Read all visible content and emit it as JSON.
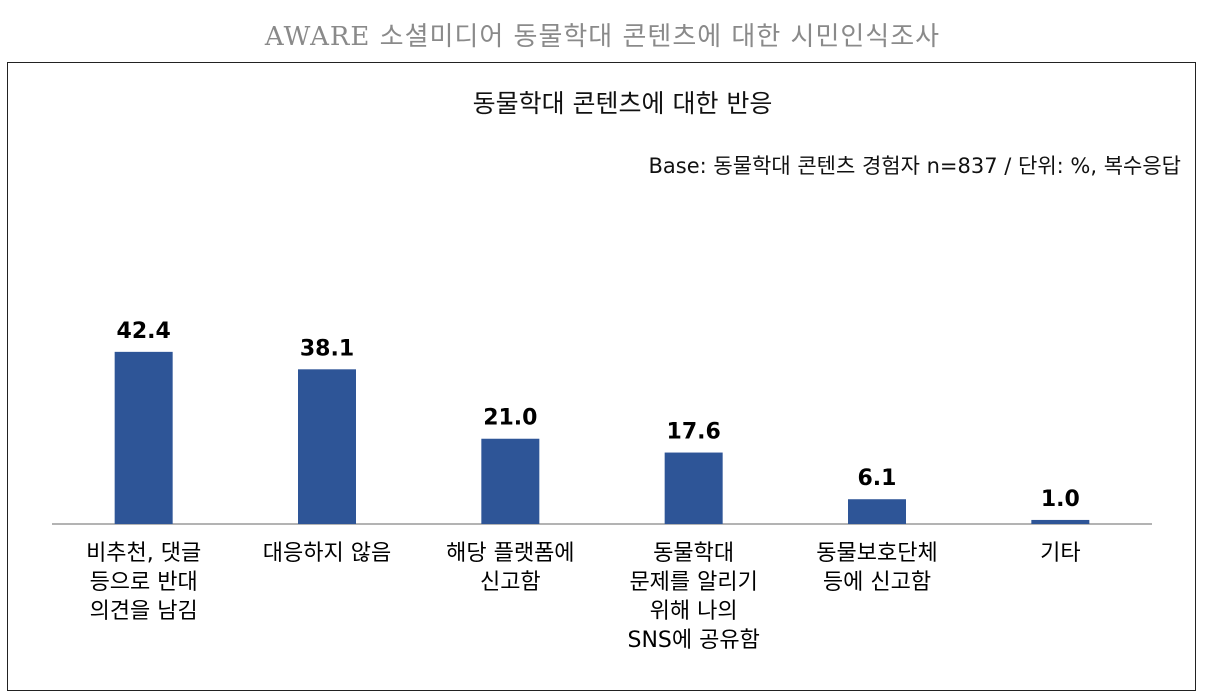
{
  "page_title": "AWARE 소셜미디어 동물학대 콘텐츠에 대한 시민인식조사",
  "chart_data": {
    "type": "bar",
    "title": "동물학대 콘텐츠에 대한 반응",
    "subtitle": "Base: 동물학대 콘텐츠 경험자 n=837 / 단위: %, 복수응답",
    "categories": [
      [
        "비추천, 댓글",
        "등으로 반대",
        "의견을 남김"
      ],
      [
        "대응하지 않음"
      ],
      [
        "해당 플랫폼에",
        "신고함"
      ],
      [
        "동물학대",
        "문제를 알리기",
        "위해 나의",
        "SNS에 공유함"
      ],
      [
        "동물보호단체",
        "등에 신고함"
      ],
      [
        "기타"
      ]
    ],
    "values": [
      42.4,
      38.1,
      21.0,
      17.6,
      6.1,
      1.0
    ],
    "value_labels": [
      "42.4",
      "38.1",
      "21.0",
      "17.6",
      "6.1",
      "1.0"
    ],
    "bar_color": "#2e5597",
    "ylim": [
      0,
      50
    ],
    "grid": false,
    "legend": "none"
  }
}
